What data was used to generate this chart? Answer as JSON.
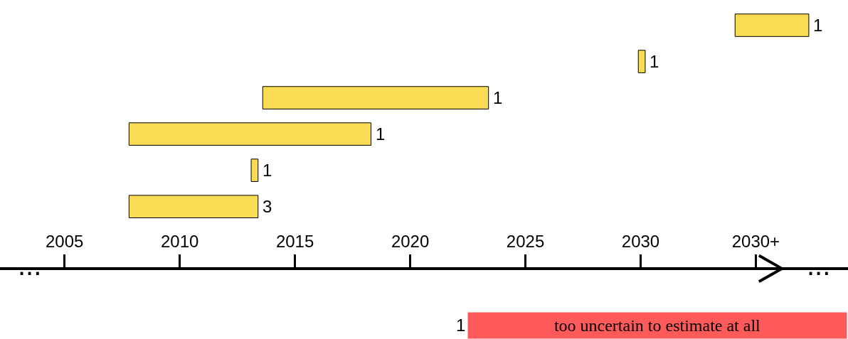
{
  "chart_data": {
    "type": "bar",
    "orientation": "horizontal",
    "categories": [
      null,
      null,
      null,
      null,
      null,
      null
    ],
    "base": [
      2034.1,
      2029.9,
      2013.6,
      2007.8,
      2013.1,
      2007.8
    ],
    "values": [
      3.2,
      0.3,
      9.8,
      10.5,
      0.3,
      5.6
    ],
    "color": "#f9dc54",
    "xlim": [
      2002.2,
      2039.0
    ],
    "xticks": [
      2005,
      2010,
      2015,
      2020,
      2025,
      2030,
      {
        "value": 2035,
        "label": "2030+"
      }
    ],
    "tick_labels": "x",
    "annotations": [
      "...",
      "...",
      "1",
      "too uncertain to estimate at all",
      {
        "text": "1",
        "x": 2037.3
      },
      {
        "text": "1",
        "x": 2030.2
      },
      {
        "text": "1",
        "x": 2023.4
      },
      {
        "text": "1",
        "x": 2018.3
      },
      {
        "text": "1",
        "x": 2013.4
      },
      {
        "text": "3",
        "x": 2013.4
      }
    ]
  }
}
